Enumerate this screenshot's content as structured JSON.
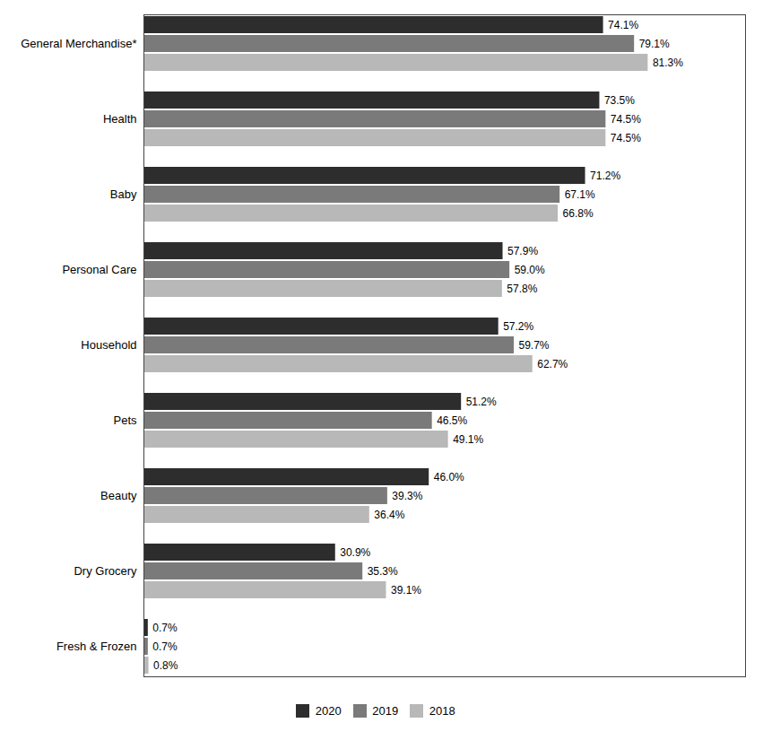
{
  "chart_data": {
    "type": "bar",
    "orientation": "horizontal",
    "categories": [
      "General Merchandise*",
      "Health",
      "Baby",
      "Personal Care",
      "Household",
      "Pets",
      "Beauty",
      "Dry Grocery",
      "Fresh & Frozen"
    ],
    "series": [
      {
        "name": "2020",
        "color": "#2d2d2d",
        "values": [
          74.1,
          73.5,
          71.2,
          57.9,
          57.2,
          51.2,
          46.0,
          30.9,
          0.7
        ],
        "value_labels": [
          "74.1%",
          "73.5%",
          "71.2%",
          "57.9%",
          "57.2%",
          "51.2%",
          "46.0%",
          "30.9%",
          "0.7%"
        ]
      },
      {
        "name": "2019",
        "color": "#7a7a7a",
        "values": [
          79.1,
          74.5,
          67.1,
          59.0,
          59.7,
          46.5,
          39.3,
          35.3,
          0.7
        ],
        "value_labels": [
          "79.1%",
          "74.5%",
          "67.1%",
          "59.0%",
          "59.7%",
          "46.5%",
          "39.3%",
          "35.3%",
          "0.7%"
        ]
      },
      {
        "name": "2018",
        "color": "#b8b8b8",
        "values": [
          81.3,
          74.5,
          66.8,
          57.8,
          62.7,
          49.1,
          36.4,
          39.1,
          0.8
        ],
        "value_labels": [
          "81.3%",
          "74.5%",
          "66.8%",
          "57.8%",
          "62.7%",
          "49.1%",
          "36.4%",
          "39.1%",
          "0.8%"
        ]
      }
    ],
    "xlim": [
      0,
      97
    ],
    "data_labels": true,
    "tick_labels": "y",
    "legend": "bottom"
  }
}
